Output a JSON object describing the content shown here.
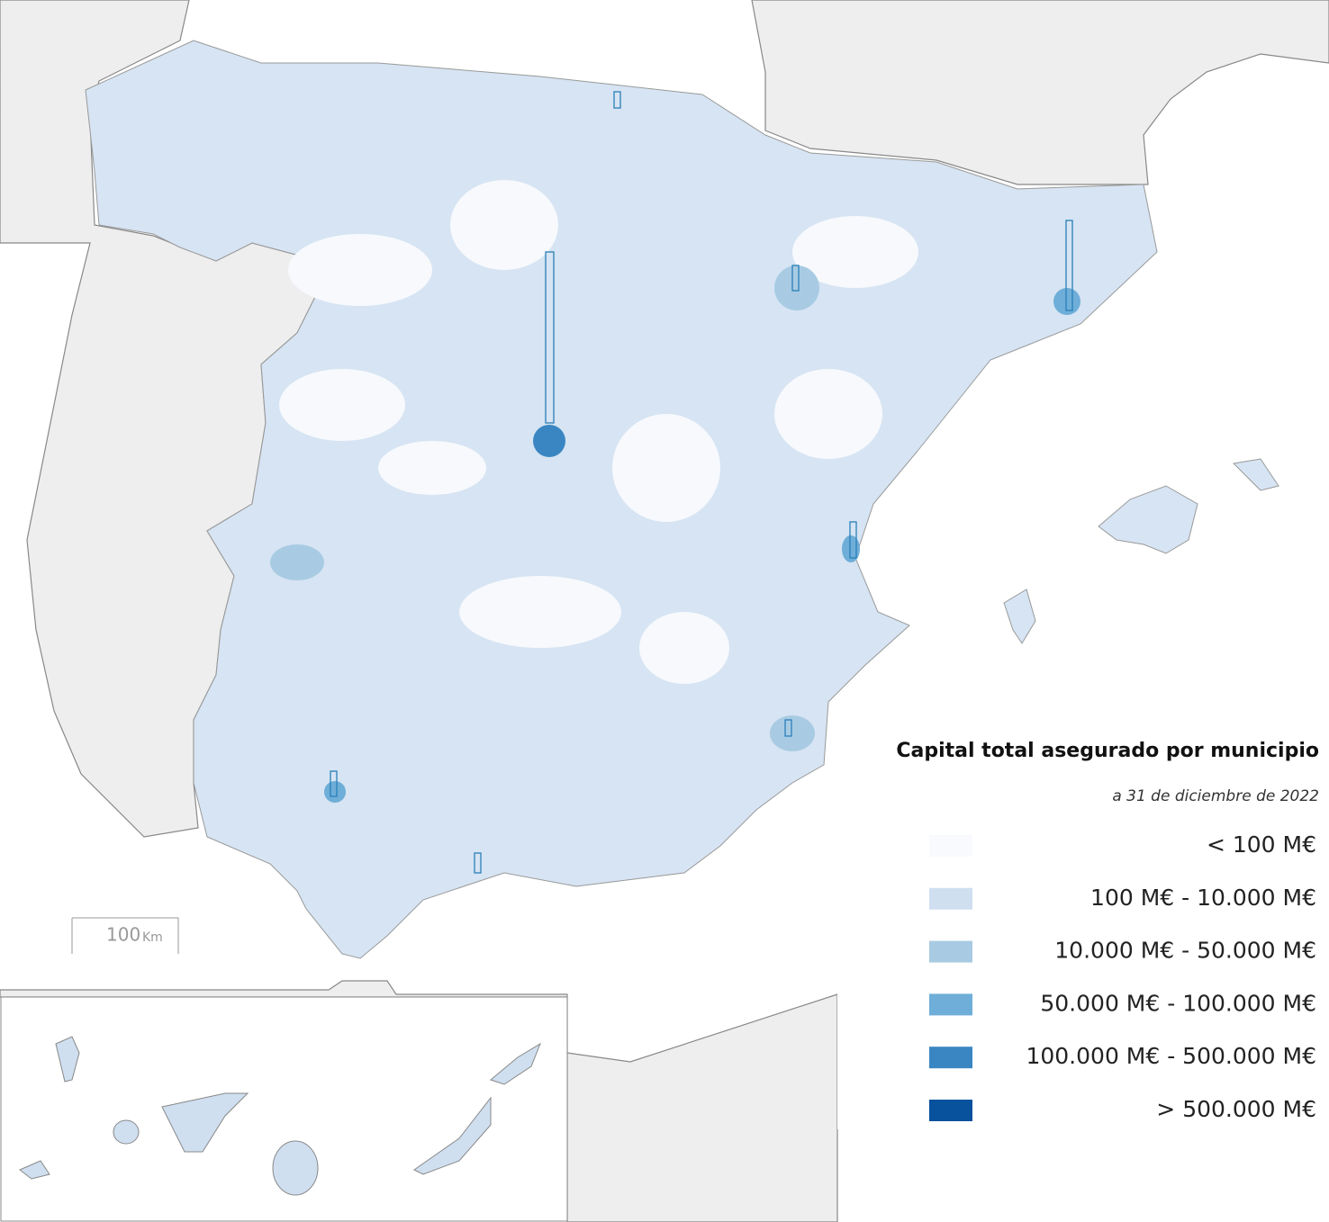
{
  "legend": {
    "title": "Capital total asegurado por municipio",
    "subtitle": "a 31 de diciembre de 2022",
    "items": [
      {
        "label": "< 100 M€",
        "color": "#f8fafd"
      },
      {
        "label": "100 M€ - 10.000 M€",
        "color": "#cfdff0"
      },
      {
        "label": "10.000 M€ - 50.000 M€",
        "color": "#a8cbe3"
      },
      {
        "label": "50.000 M€ - 100.000 M€",
        "color": "#6eaed8"
      },
      {
        "label": "100.000 M€ - 500.000 M€",
        "color": "#3a86c2"
      },
      {
        "label": "> 500.000 M€",
        "color": "#08519c"
      }
    ]
  },
  "scale_bar": {
    "value": "100",
    "unit": "Km"
  }
}
